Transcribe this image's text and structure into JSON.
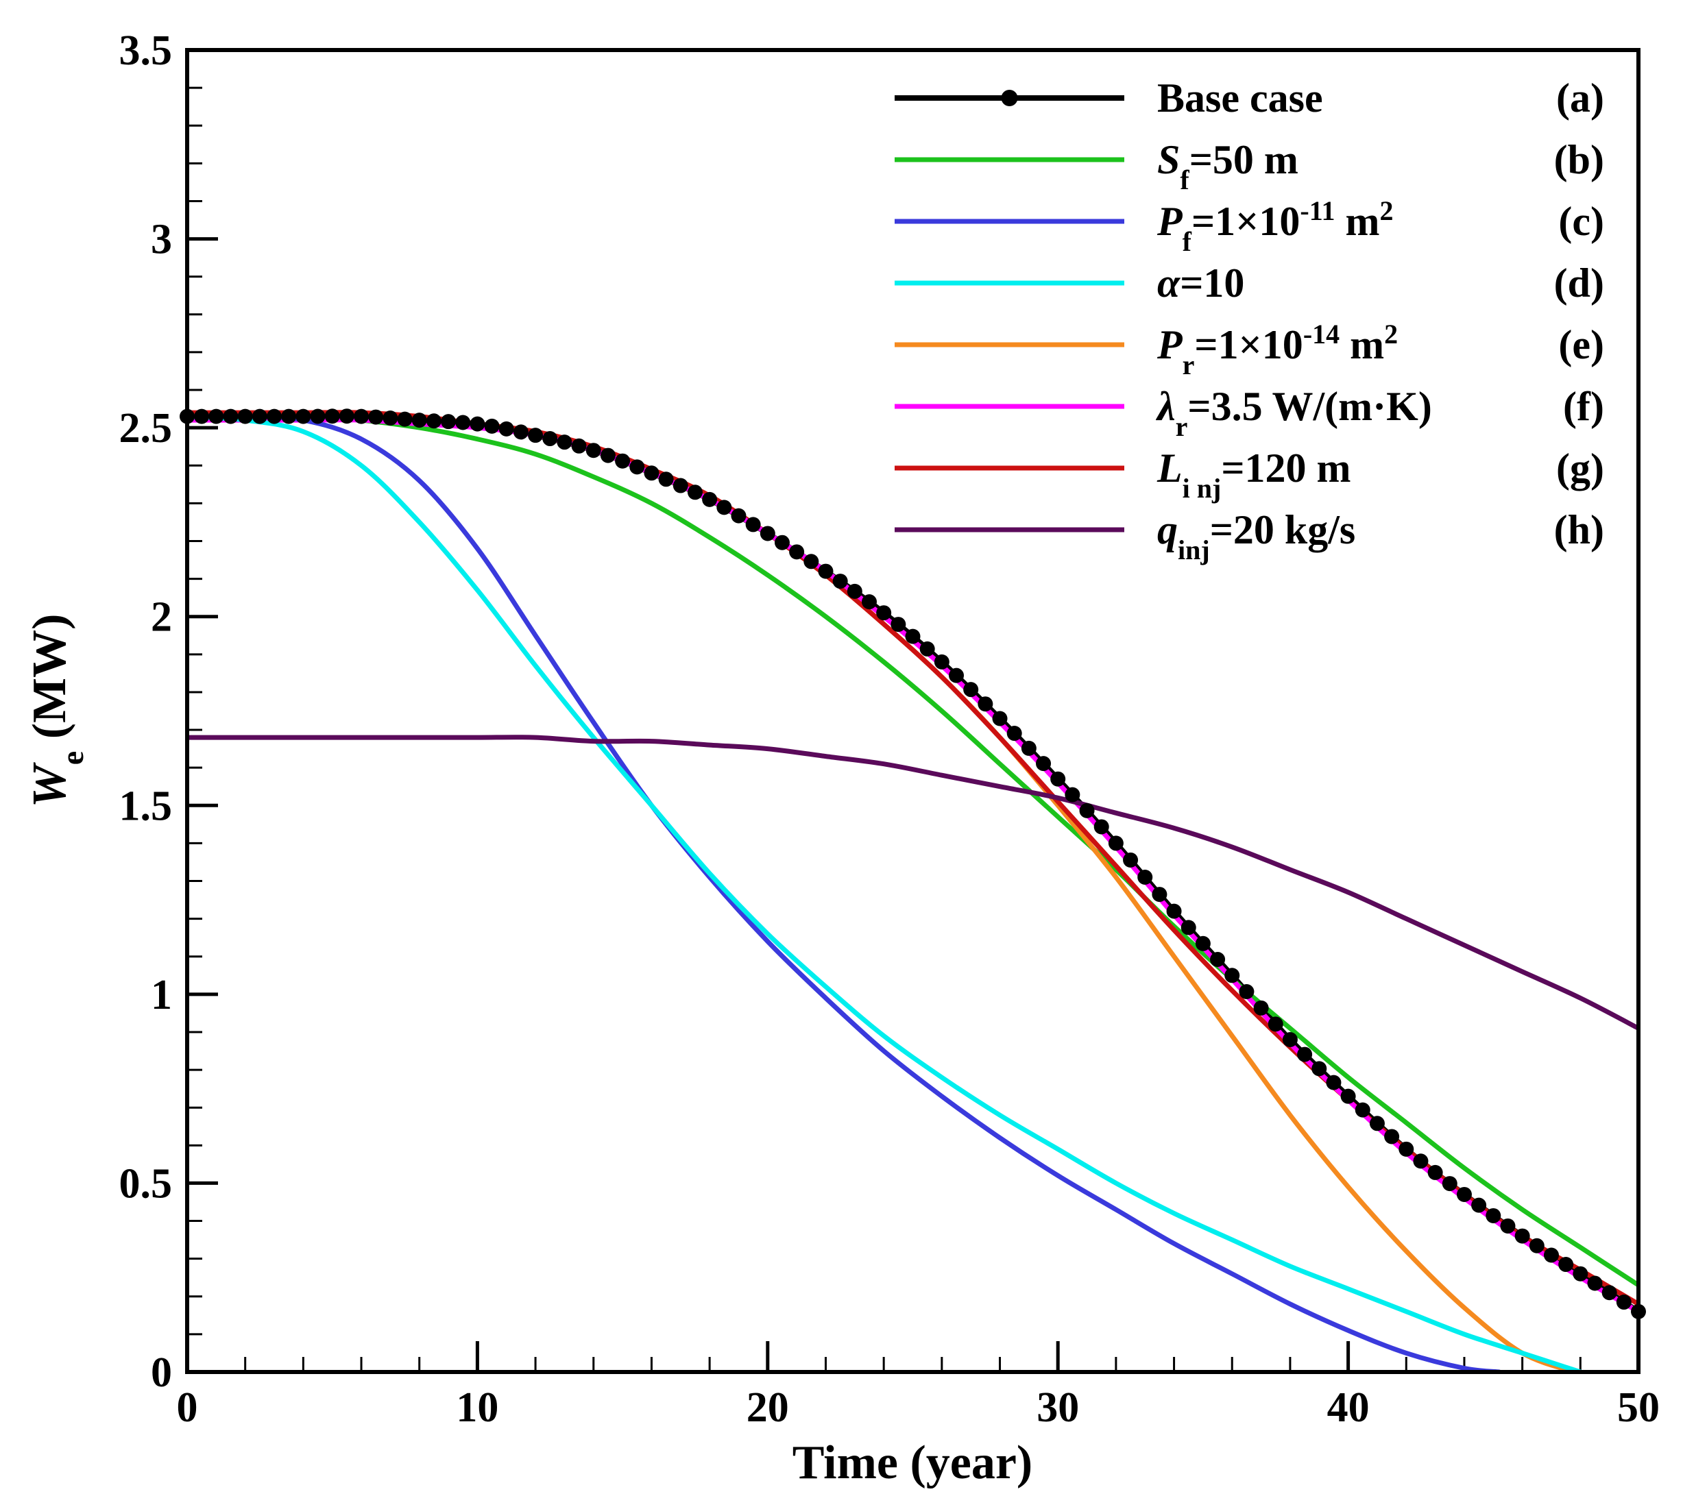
{
  "chart_data": {
    "type": "line",
    "title": "",
    "xlabel": "Time (year)",
    "ylabel": {
      "main": "W",
      "sub": "e",
      "unit": " (MW)"
    },
    "xlim": [
      0,
      50
    ],
    "ylim": [
      0,
      3.5
    ],
    "xticks": [
      0,
      10,
      20,
      30,
      40,
      50
    ],
    "yticks": [
      0,
      0.5,
      1,
      1.5,
      2,
      2.5,
      3,
      3.5
    ],
    "xtick_labels": [
      "0",
      "10",
      "20",
      "30",
      "40",
      "50"
    ],
    "ytick_labels": [
      "0",
      "0.5",
      "1",
      "1.5",
      "2",
      "2.5",
      "3",
      "3.5"
    ],
    "legend_position": "top-right",
    "series": [
      {
        "id": "a",
        "name": "Base case",
        "tag": "(a)",
        "label_parts": [
          {
            "t": "Base case"
          }
        ],
        "color": "#000000",
        "markers": true,
        "x": [
          0,
          2,
          4,
          6,
          8,
          10,
          12,
          14,
          16,
          18,
          20,
          22,
          24,
          26,
          28,
          30,
          32,
          34,
          36,
          38,
          40,
          42,
          44,
          46,
          48,
          50
        ],
        "y": [
          2.53,
          2.53,
          2.53,
          2.53,
          2.52,
          2.51,
          2.48,
          2.44,
          2.38,
          2.31,
          2.22,
          2.12,
          2.01,
          1.88,
          1.73,
          1.57,
          1.4,
          1.22,
          1.05,
          0.88,
          0.73,
          0.59,
          0.47,
          0.36,
          0.26,
          0.16
        ]
      },
      {
        "id": "b",
        "name": "Sf=50 m",
        "tag": "(b)",
        "label_parts": [
          {
            "t": "S",
            "s": "italic"
          },
          {
            "t": "f",
            "s": "sub"
          },
          {
            "t": "=50 m"
          }
        ],
        "color": "#1cc21c",
        "x": [
          0,
          2,
          4,
          6,
          8,
          10,
          12,
          14,
          16,
          18,
          20,
          22,
          24,
          26,
          28,
          30,
          32,
          34,
          36,
          38,
          40,
          42,
          44,
          46,
          48,
          50
        ],
        "y": [
          2.53,
          2.53,
          2.53,
          2.52,
          2.5,
          2.47,
          2.43,
          2.37,
          2.3,
          2.21,
          2.11,
          2.0,
          1.88,
          1.75,
          1.61,
          1.47,
          1.33,
          1.18,
          1.04,
          0.91,
          0.78,
          0.66,
          0.54,
          0.43,
          0.33,
          0.23
        ]
      },
      {
        "id": "c",
        "name": "Pf=1×10-11 m2",
        "tag": "(c)",
        "label_parts": [
          {
            "t": "P",
            "s": "italic"
          },
          {
            "t": "f",
            "s": "sub"
          },
          {
            "t": "=1×10"
          },
          {
            "t": "-11",
            "s": "sup"
          },
          {
            "t": " m"
          },
          {
            "t": "2",
            "s": "sup"
          }
        ],
        "color": "#3a3adc",
        "x": [
          0,
          2,
          4,
          6,
          8,
          10,
          12,
          14,
          16,
          18,
          20,
          22,
          24,
          26,
          28,
          30,
          32,
          34,
          36,
          38,
          40,
          42,
          44,
          45.2
        ],
        "y": [
          2.53,
          2.53,
          2.52,
          2.47,
          2.36,
          2.18,
          1.95,
          1.72,
          1.5,
          1.31,
          1.14,
          0.99,
          0.85,
          0.73,
          0.62,
          0.52,
          0.43,
          0.34,
          0.26,
          0.18,
          0.11,
          0.05,
          0.01,
          0.0
        ]
      },
      {
        "id": "d",
        "name": "α=10",
        "tag": "(d)",
        "label_parts": [
          {
            "t": "α",
            "s": "italic"
          },
          {
            "t": "=10"
          }
        ],
        "color": "#00eeee",
        "x": [
          0,
          2,
          4,
          6,
          8,
          10,
          12,
          14,
          16,
          18,
          20,
          22,
          24,
          26,
          28,
          30,
          32,
          34,
          36,
          38,
          40,
          42,
          44,
          46,
          48
        ],
        "y": [
          2.53,
          2.52,
          2.49,
          2.4,
          2.25,
          2.07,
          1.87,
          1.68,
          1.5,
          1.32,
          1.16,
          1.02,
          0.89,
          0.78,
          0.68,
          0.59,
          0.5,
          0.42,
          0.35,
          0.28,
          0.22,
          0.16,
          0.1,
          0.05,
          0.0
        ]
      },
      {
        "id": "e",
        "name": "Pr=1×10-14 m2",
        "tag": "(e)",
        "label_parts": [
          {
            "t": "P",
            "s": "italic"
          },
          {
            "t": "r",
            "s": "sub"
          },
          {
            "t": "=1×10"
          },
          {
            "t": "-14",
            "s": "sup"
          },
          {
            "t": " m"
          },
          {
            "t": "2",
            "s": "sup"
          }
        ],
        "color": "#f58a1f",
        "x": [
          0,
          2,
          4,
          6,
          8,
          10,
          12,
          14,
          16,
          18,
          20,
          22,
          24,
          26,
          28,
          30,
          32,
          34,
          36,
          38,
          40,
          42,
          44,
          46,
          47.8
        ],
        "y": [
          2.53,
          2.53,
          2.53,
          2.53,
          2.52,
          2.51,
          2.48,
          2.44,
          2.38,
          2.31,
          2.22,
          2.11,
          1.98,
          1.84,
          1.68,
          1.5,
          1.31,
          1.1,
          0.89,
          0.68,
          0.49,
          0.32,
          0.17,
          0.05,
          0.0
        ]
      },
      {
        "id": "f",
        "name": "λr=3.5 W/(m·K)",
        "tag": "(f)",
        "label_parts": [
          {
            "t": "λ",
            "s": "italic"
          },
          {
            "t": "r",
            "s": "sub"
          },
          {
            "t": "=3.5 W/(m·K)"
          }
        ],
        "color": "#ff00ff",
        "x": [
          0,
          2,
          4,
          6,
          8,
          10,
          12,
          14,
          16,
          18,
          20,
          22,
          24,
          26,
          28,
          30,
          32,
          34,
          36,
          38,
          40,
          42,
          44,
          46,
          48,
          50
        ],
        "y": [
          2.52,
          2.52,
          2.52,
          2.52,
          2.51,
          2.5,
          2.48,
          2.44,
          2.38,
          2.31,
          2.22,
          2.12,
          2.0,
          1.87,
          1.72,
          1.56,
          1.39,
          1.21,
          1.04,
          0.87,
          0.72,
          0.58,
          0.46,
          0.35,
          0.25,
          0.16
        ]
      },
      {
        "id": "g",
        "name": "Linj=120 m",
        "tag": "(g)",
        "label_parts": [
          {
            "t": "L",
            "s": "italic"
          },
          {
            "t": "i nj",
            "s": "sub"
          },
          {
            "t": "=120 m"
          }
        ],
        "color": "#cc1111",
        "x": [
          0,
          2,
          4,
          6,
          8,
          10,
          12,
          14,
          16,
          18,
          20,
          22,
          24,
          26,
          28,
          30,
          32,
          34,
          36,
          38,
          40,
          42,
          44,
          46,
          48,
          50
        ],
        "y": [
          2.54,
          2.54,
          2.54,
          2.54,
          2.53,
          2.51,
          2.49,
          2.45,
          2.39,
          2.32,
          2.22,
          2.11,
          1.98,
          1.84,
          1.68,
          1.51,
          1.34,
          1.17,
          1.01,
          0.86,
          0.72,
          0.59,
          0.47,
          0.36,
          0.27,
          0.18
        ]
      },
      {
        "id": "h",
        "name": "qinj=20 kg/s",
        "tag": "(h)",
        "label_parts": [
          {
            "t": "q",
            "s": "italic"
          },
          {
            "t": "inj",
            "s": "sub"
          },
          {
            "t": "=20 kg/s"
          }
        ],
        "color": "#5a0a5a",
        "x": [
          0,
          2,
          4,
          6,
          8,
          10,
          12,
          14,
          16,
          18,
          20,
          22,
          24,
          26,
          28,
          30,
          32,
          34,
          36,
          38,
          40,
          42,
          44,
          46,
          48,
          50
        ],
        "y": [
          1.68,
          1.68,
          1.68,
          1.68,
          1.68,
          1.68,
          1.68,
          1.67,
          1.67,
          1.66,
          1.65,
          1.63,
          1.61,
          1.58,
          1.55,
          1.52,
          1.48,
          1.44,
          1.39,
          1.33,
          1.27,
          1.2,
          1.13,
          1.06,
          0.99,
          0.91
        ]
      }
    ]
  }
}
